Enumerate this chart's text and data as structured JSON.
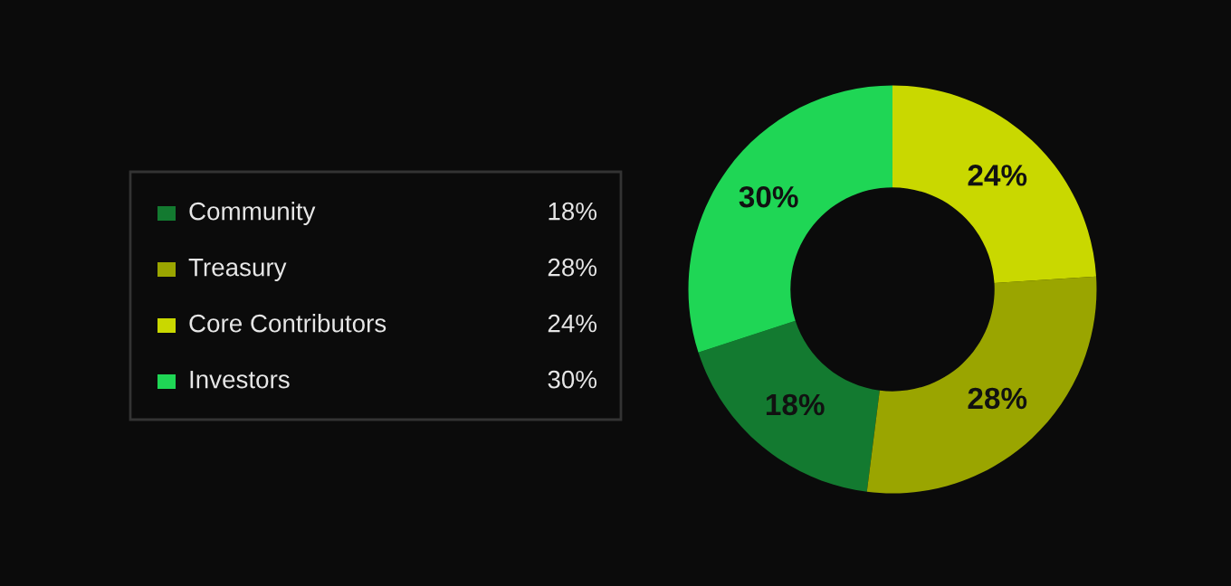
{
  "chart_data": {
    "type": "donut",
    "categories": [
      "Community",
      "Treasury",
      "Core Contributors",
      "Investors"
    ],
    "values": [
      18,
      28,
      24,
      30
    ],
    "colors": [
      "#137a30",
      "#9aa500",
      "#c9d800",
      "#1fd655"
    ],
    "value_labels": [
      "18%",
      "28%",
      "24%",
      "30%"
    ],
    "legend": "left"
  }
}
